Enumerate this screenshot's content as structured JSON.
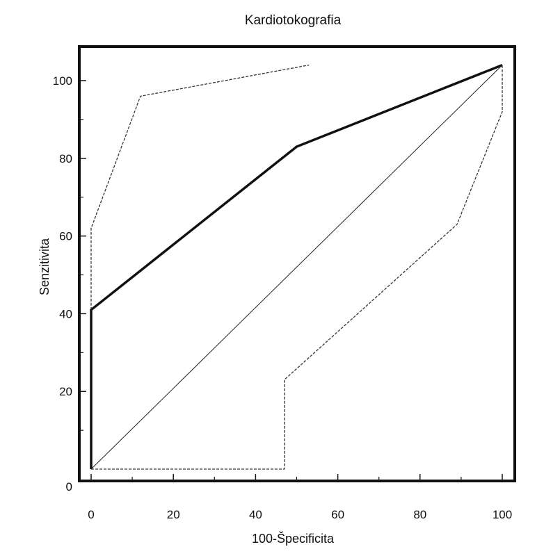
{
  "chart_data": {
    "type": "line",
    "title": "Kardiotokografia",
    "xlabel": "100-Špecificita",
    "ylabel": "Senzitivita",
    "xlim": [
      0,
      100
    ],
    "ylim": [
      0,
      105
    ],
    "x_ticks": [
      "0",
      "20",
      "40",
      "60",
      "80",
      "100"
    ],
    "y_ticks": [
      "0",
      "20",
      "40",
      "60",
      "80",
      "100"
    ],
    "grid": false,
    "legend": "none",
    "series": [
      {
        "style": "solid-thick",
        "points": [
          [
            0,
            0
          ],
          [
            0,
            41
          ],
          [
            50,
            83
          ],
          [
            100,
            104
          ]
        ]
      },
      {
        "style": "dashed-upper-bound",
        "points": [
          [
            0,
            41
          ],
          [
            0,
            62
          ],
          [
            12,
            96
          ],
          [
            53,
            104
          ]
        ]
      },
      {
        "style": "dashed-lower-bound",
        "points": [
          [
            0,
            0
          ],
          [
            47,
            0
          ],
          [
            47,
            23
          ],
          [
            89,
            63
          ],
          [
            100,
            92
          ],
          [
            100,
            104
          ]
        ]
      },
      {
        "style": "reference-diagonal",
        "points": [
          [
            0,
            0
          ],
          [
            100,
            104
          ]
        ]
      }
    ]
  }
}
